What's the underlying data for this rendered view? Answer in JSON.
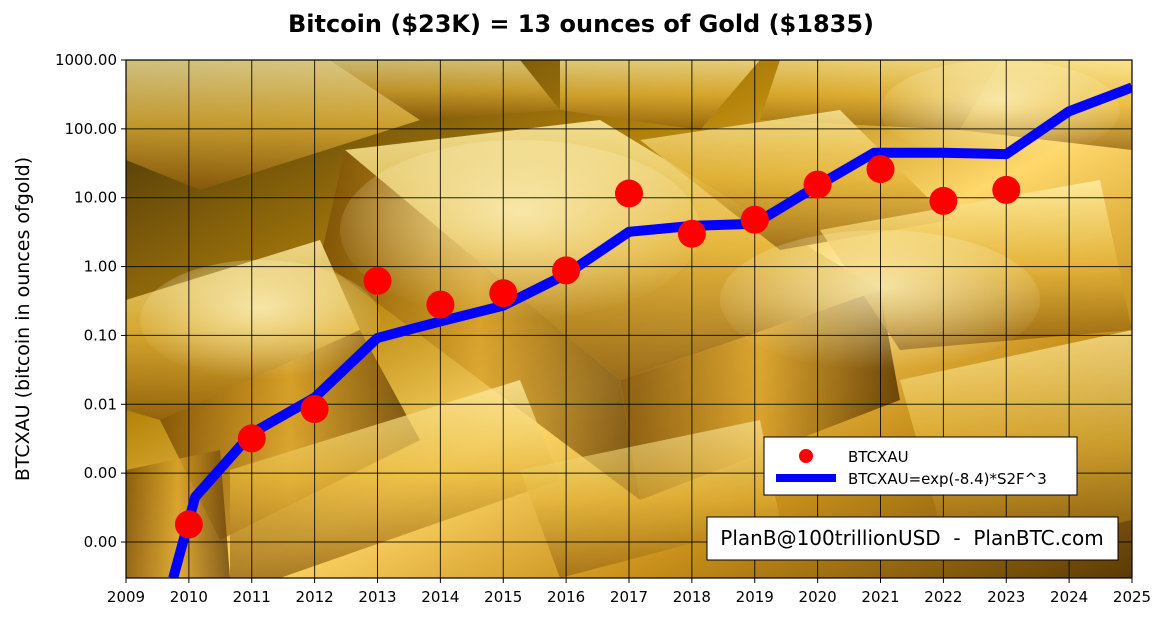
{
  "chart_data": {
    "type": "line",
    "title": "Bitcoin ($23K) = 13 ounces of Gold ($1835)",
    "ylabel": "BTCXAU (bitcoin in ounces ofgold)",
    "xlabel": "",
    "y_scale": "log",
    "xlim": [
      2009,
      2025
    ],
    "ylim": [
      3e-05,
      1000
    ],
    "x_ticks": [
      "2009",
      "2010",
      "2011",
      "2012",
      "2013",
      "2014",
      "2015",
      "2016",
      "2017",
      "2018",
      "2019",
      "2020",
      "2021",
      "2022",
      "2023",
      "2024",
      "2025"
    ],
    "y_ticks": [
      {
        "value": 1000,
        "label": "1000.00"
      },
      {
        "value": 100,
        "label": "100.00"
      },
      {
        "value": 10,
        "label": "10.00"
      },
      {
        "value": 1,
        "label": "1.00"
      },
      {
        "value": 0.1,
        "label": "0.10"
      },
      {
        "value": 0.01,
        "label": "0.01"
      },
      {
        "value": 0.001,
        "label": "0.00"
      },
      {
        "value": 0.0001,
        "label": "0.00"
      }
    ],
    "grid": true,
    "legend_position": "lower-right",
    "background_image": "gold-bars",
    "series": [
      {
        "name": "BTCXAU",
        "type": "scatter",
        "color": "#ff0000",
        "points": [
          {
            "x": 2010,
            "y": 0.00018
          },
          {
            "x": 2011,
            "y": 0.0032
          },
          {
            "x": 2012,
            "y": 0.0085
          },
          {
            "x": 2013,
            "y": 0.62
          },
          {
            "x": 2014,
            "y": 0.28
          },
          {
            "x": 2015,
            "y": 0.41
          },
          {
            "x": 2016,
            "y": 0.88
          },
          {
            "x": 2017,
            "y": 11.5
          },
          {
            "x": 2018,
            "y": 3.0
          },
          {
            "x": 2019,
            "y": 4.8
          },
          {
            "x": 2020,
            "y": 15.5
          },
          {
            "x": 2021,
            "y": 26
          },
          {
            "x": 2022,
            "y": 9.0
          },
          {
            "x": 2023,
            "y": 13
          }
        ]
      },
      {
        "name": "BTCXAU=exp(-8.4)*S2F^3",
        "type": "line",
        "color": "#0000ff",
        "points": [
          {
            "x": 2009.75,
            "y": 3e-05
          },
          {
            "x": 2010.1,
            "y": 0.00045
          },
          {
            "x": 2011,
            "y": 0.0038
          },
          {
            "x": 2012,
            "y": 0.0125
          },
          {
            "x": 2013,
            "y": 0.092
          },
          {
            "x": 2014,
            "y": 0.16
          },
          {
            "x": 2015,
            "y": 0.27
          },
          {
            "x": 2016,
            "y": 0.77
          },
          {
            "x": 2017,
            "y": 3.2
          },
          {
            "x": 2018,
            "y": 3.9
          },
          {
            "x": 2019,
            "y": 4.2
          },
          {
            "x": 2020,
            "y": 15
          },
          {
            "x": 2020.9,
            "y": 45
          },
          {
            "x": 2022,
            "y": 45
          },
          {
            "x": 2023,
            "y": 43
          },
          {
            "x": 2024,
            "y": 180
          },
          {
            "x": 2025,
            "y": 400
          }
        ]
      }
    ],
    "annotation": "PlanB@100trillionUSD  -  PlanBTC.com"
  }
}
